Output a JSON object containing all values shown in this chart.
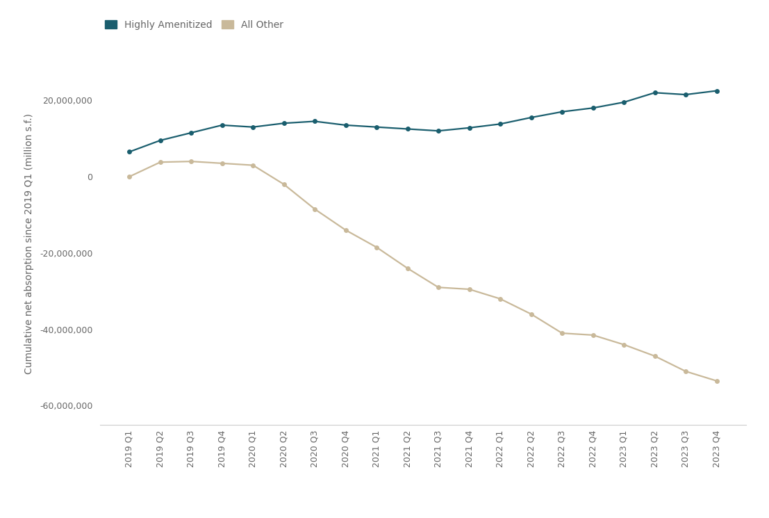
{
  "labels": [
    "2019 Q1",
    "2019 Q2",
    "2019 Q3",
    "2019 Q4",
    "2020 Q1",
    "2020 Q2",
    "2020 Q3",
    "2020 Q4",
    "2021 Q1",
    "2021 Q2",
    "2021 Q3",
    "2021 Q4",
    "2022 Q1",
    "2022 Q2",
    "2022 Q3",
    "2022 Q4",
    "2023 Q1",
    "2023 Q2",
    "2023 Q3",
    "2023 Q4"
  ],
  "highly_amenitized": [
    6500000,
    9500000,
    11500000,
    13500000,
    13000000,
    14000000,
    14500000,
    13500000,
    13000000,
    12500000,
    12000000,
    12800000,
    13800000,
    15500000,
    17000000,
    18000000,
    19500000,
    22000000,
    21500000,
    22500000
  ],
  "all_other": [
    0,
    3800000,
    4000000,
    3500000,
    3000000,
    -2000000,
    -8500000,
    -14000000,
    -18500000,
    -24000000,
    -29000000,
    -29500000,
    -32000000,
    -36000000,
    -41000000,
    -41500000,
    -44000000,
    -47000000,
    -51000000,
    -53500000
  ],
  "highly_amenitized_color": "#1a5e6e",
  "all_other_color": "#c9b99a",
  "background_color": "#ffffff",
  "ylabel": "Cumulative net absorption since 2019 Q1 (million s.f.)",
  "legend_highly": "Highly Amenitized",
  "legend_other": "All Other",
  "yticks": [
    20000000,
    0,
    -20000000,
    -40000000,
    -60000000
  ],
  "ylim": [
    -65000000,
    30000000
  ],
  "tick_color": "#666666",
  "spine_color": "#cccccc",
  "ylabel_fontsize": 10,
  "tick_fontsize": 9,
  "legend_fontsize": 10
}
